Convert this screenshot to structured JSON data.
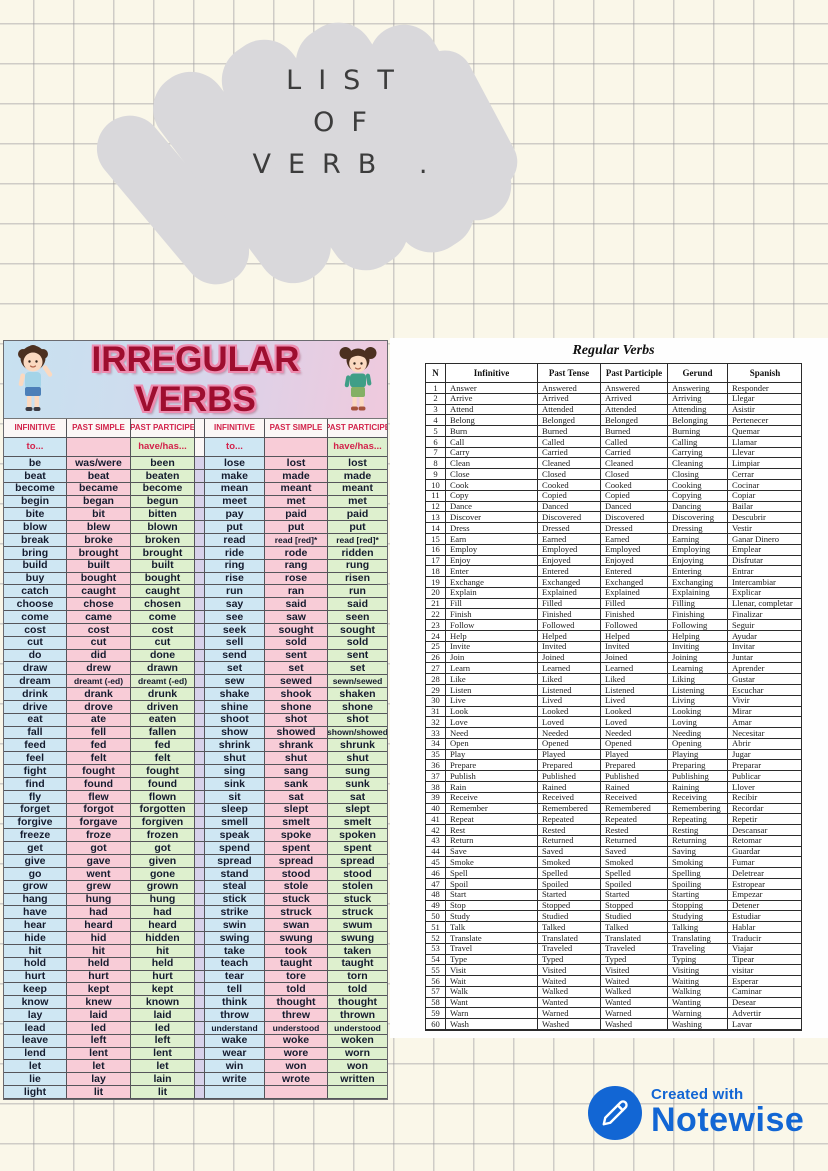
{
  "page_title": {
    "line1": "LIST",
    "line2": "OF",
    "line3": "VERB ."
  },
  "irregular": {
    "title": "IRREGULAR VERBS",
    "col_headers": [
      "INFINITIVE",
      "PAST SIMPLE",
      "PAST PARTICIPE",
      "INFINITIVE",
      "PAST SIMPLE",
      "PAST PARTICIPE"
    ],
    "sub_headers": [
      "to...",
      "",
      "have/has...",
      "to...",
      "",
      "have/has..."
    ],
    "colors": {
      "infinitive_bg": "#cfe7f3",
      "past_simple_bg": "#f8ccd7",
      "participle_bg": "#def0ce",
      "separator_bg": "#d7d2ea",
      "header_text": "#d2224a",
      "title_fill": "#9e0e2f",
      "title_outline": "#ee8cb0"
    },
    "left_rows": [
      [
        "be",
        "was/were",
        "been"
      ],
      [
        "beat",
        "beat",
        "beaten"
      ],
      [
        "become",
        "became",
        "become"
      ],
      [
        "begin",
        "began",
        "begun"
      ],
      [
        "bite",
        "bit",
        "bitten"
      ],
      [
        "blow",
        "blew",
        "blown"
      ],
      [
        "break",
        "broke",
        "broken"
      ],
      [
        "bring",
        "brought",
        "brought"
      ],
      [
        "build",
        "built",
        "built"
      ],
      [
        "buy",
        "bought",
        "bought"
      ],
      [
        "catch",
        "caught",
        "caught"
      ],
      [
        "choose",
        "chose",
        "chosen"
      ],
      [
        "come",
        "came",
        "come"
      ],
      [
        "cost",
        "cost",
        "cost"
      ],
      [
        "cut",
        "cut",
        "cut"
      ],
      [
        "do",
        "did",
        "done"
      ],
      [
        "draw",
        "drew",
        "drawn"
      ],
      [
        "dream",
        "dreamt (-ed)",
        "dreamt (-ed)"
      ],
      [
        "drink",
        "drank",
        "drunk"
      ],
      [
        "drive",
        "drove",
        "driven"
      ],
      [
        "eat",
        "ate",
        "eaten"
      ],
      [
        "fall",
        "fell",
        "fallen"
      ],
      [
        "feed",
        "fed",
        "fed"
      ],
      [
        "feel",
        "felt",
        "felt"
      ],
      [
        "fight",
        "fought",
        "fought"
      ],
      [
        "find",
        "found",
        "found"
      ],
      [
        "fly",
        "flew",
        "flown"
      ],
      [
        "forget",
        "forgot",
        "forgotten"
      ],
      [
        "forgive",
        "forgave",
        "forgiven"
      ],
      [
        "freeze",
        "froze",
        "frozen"
      ],
      [
        "get",
        "got",
        "got"
      ],
      [
        "give",
        "gave",
        "given"
      ],
      [
        "go",
        "went",
        "gone"
      ],
      [
        "grow",
        "grew",
        "grown"
      ],
      [
        "hang",
        "hung",
        "hung"
      ],
      [
        "have",
        "had",
        "had"
      ],
      [
        "hear",
        "heard",
        "heard"
      ],
      [
        "hide",
        "hid",
        "hidden"
      ],
      [
        "hit",
        "hit",
        "hit"
      ],
      [
        "hold",
        "held",
        "held"
      ],
      [
        "hurt",
        "hurt",
        "hurt"
      ],
      [
        "keep",
        "kept",
        "kept"
      ],
      [
        "know",
        "knew",
        "known"
      ],
      [
        "lay",
        "laid",
        "laid"
      ],
      [
        "lead",
        "led",
        "led"
      ],
      [
        "leave",
        "left",
        "left"
      ],
      [
        "lend",
        "lent",
        "lent"
      ],
      [
        "let",
        "let",
        "let"
      ],
      [
        "lie",
        "lay",
        "lain"
      ],
      [
        "light",
        "lit",
        "lit"
      ]
    ],
    "right_rows": [
      [
        "lose",
        "lost",
        "lost"
      ],
      [
        "make",
        "made",
        "made"
      ],
      [
        "mean",
        "meant",
        "meant"
      ],
      [
        "meet",
        "met",
        "met"
      ],
      [
        "pay",
        "paid",
        "paid"
      ],
      [
        "put",
        "put",
        "put"
      ],
      [
        "read",
        "read [red]*",
        "read [red]*"
      ],
      [
        "ride",
        "rode",
        "ridden"
      ],
      [
        "ring",
        "rang",
        "rung"
      ],
      [
        "rise",
        "rose",
        "risen"
      ],
      [
        "run",
        "ran",
        "run"
      ],
      [
        "say",
        "said",
        "said"
      ],
      [
        "see",
        "saw",
        "seen"
      ],
      [
        "seek",
        "sought",
        "sought"
      ],
      [
        "sell",
        "sold",
        "sold"
      ],
      [
        "send",
        "sent",
        "sent"
      ],
      [
        "set",
        "set",
        "set"
      ],
      [
        "sew",
        "sewed",
        "sewn/sewed"
      ],
      [
        "shake",
        "shook",
        "shaken"
      ],
      [
        "shine",
        "shone",
        "shone"
      ],
      [
        "shoot",
        "shot",
        "shot"
      ],
      [
        "show",
        "showed",
        "shown/showed"
      ],
      [
        "shrink",
        "shrank",
        "shrunk"
      ],
      [
        "shut",
        "shut",
        "shut"
      ],
      [
        "sing",
        "sang",
        "sung"
      ],
      [
        "sink",
        "sank",
        "sunk"
      ],
      [
        "sit",
        "sat",
        "sat"
      ],
      [
        "sleep",
        "slept",
        "slept"
      ],
      [
        "smell",
        "smelt",
        "smelt"
      ],
      [
        "speak",
        "spoke",
        "spoken"
      ],
      [
        "spend",
        "spent",
        "spent"
      ],
      [
        "spread",
        "spread",
        "spread"
      ],
      [
        "stand",
        "stood",
        "stood"
      ],
      [
        "steal",
        "stole",
        "stolen"
      ],
      [
        "stick",
        "stuck",
        "stuck"
      ],
      [
        "strike",
        "struck",
        "struck"
      ],
      [
        "swin",
        "swan",
        "swum"
      ],
      [
        "swing",
        "swung",
        "swung"
      ],
      [
        "take",
        "took",
        "taken"
      ],
      [
        "teach",
        "taught",
        "taught"
      ],
      [
        "tear",
        "tore",
        "torn"
      ],
      [
        "tell",
        "told",
        "told"
      ],
      [
        "think",
        "thought",
        "thought"
      ],
      [
        "throw",
        "threw",
        "thrown"
      ],
      [
        "understand",
        "understood",
        "understood"
      ],
      [
        "wake",
        "woke",
        "woken"
      ],
      [
        "wear",
        "wore",
        "worn"
      ],
      [
        "win",
        "won",
        "won"
      ],
      [
        "write",
        "wrote",
        "written"
      ],
      [
        "",
        "",
        ""
      ]
    ]
  },
  "regular": {
    "title": "Regular Verbs",
    "headers": [
      "N",
      "Infinitive",
      "Past Tense",
      "Past Participle",
      "Gerund",
      "Spanish"
    ],
    "rows": [
      [
        "1",
        "Answer",
        "Answered",
        "Answered",
        "Answering",
        "Responder"
      ],
      [
        "2",
        "Arrive",
        "Arrived",
        "Arrived",
        "Arriving",
        "Llegar"
      ],
      [
        "3",
        "Attend",
        "Attended",
        "Attended",
        "Attending",
        "Asistir"
      ],
      [
        "4",
        "Belong",
        "Belonged",
        "Belonged",
        "Belonging",
        "Pertenecer"
      ],
      [
        "5",
        "Burn",
        "Burned",
        "Burned",
        "Burning",
        "Quemar"
      ],
      [
        "6",
        "Call",
        "Called",
        "Called",
        "Calling",
        "Llamar"
      ],
      [
        "7",
        "Carry",
        "Carried",
        "Carried",
        "Carrying",
        "Llevar"
      ],
      [
        "8",
        "Clean",
        "Cleaned",
        "Cleaned",
        "Cleaning",
        "Limpiar"
      ],
      [
        "9",
        "Close",
        "Closed",
        "Closed",
        "Closing",
        "Cerrar"
      ],
      [
        "10",
        "Cook",
        "Cooked",
        "Cooked",
        "Cooking",
        "Cocinar"
      ],
      [
        "11",
        "Copy",
        "Copied",
        "Copied",
        "Copying",
        "Copiar"
      ],
      [
        "12",
        "Dance",
        "Danced",
        "Danced",
        "Dancing",
        "Bailar"
      ],
      [
        "13",
        "Discover",
        "Discovered",
        "Discovered",
        "Discovering",
        "Descubrir"
      ],
      [
        "14",
        "Dress",
        "Dressed",
        "Dressed",
        "Dressing",
        "Vestir"
      ],
      [
        "15",
        "Earn",
        "Earned",
        "Earned",
        "Earning",
        "Ganar Dinero"
      ],
      [
        "16",
        "Employ",
        "Employed",
        "Employed",
        "Employing",
        "Emplear"
      ],
      [
        "17",
        "Enjoy",
        "Enjoyed",
        "Enjoyed",
        "Enjoying",
        "Disfrutar"
      ],
      [
        "18",
        "Enter",
        "Entered",
        "Entered",
        "Entering",
        "Entrar"
      ],
      [
        "19",
        "Exchange",
        "Exchanged",
        "Exchanged",
        "Exchanging",
        "Intercambiar"
      ],
      [
        "20",
        "Explain",
        "Explained",
        "Explained",
        "Explaining",
        "Explicar"
      ],
      [
        "21",
        "Fill",
        "Filled",
        "Filled",
        "Filling",
        "Llenar, completar"
      ],
      [
        "22",
        "Finish",
        "Finished",
        "Finished",
        "Finishing",
        "Finalizar"
      ],
      [
        "23",
        "Follow",
        "Followed",
        "Followed",
        "Following",
        "Seguir"
      ],
      [
        "24",
        "Help",
        "Helped",
        "Helped",
        "Helping",
        "Ayudar"
      ],
      [
        "25",
        "Invite",
        "Invited",
        "Invited",
        "Inviting",
        "Invitar"
      ],
      [
        "26",
        "Join",
        "Joined",
        "Joined",
        "Joining",
        "Juntar"
      ],
      [
        "27",
        "Learn",
        "Learned",
        "Learned",
        "Learning",
        "Aprender"
      ],
      [
        "28",
        "Like",
        "Liked",
        "Liked",
        "Liking",
        "Gustar"
      ],
      [
        "29",
        "Listen",
        "Listened",
        "Listened",
        "Listening",
        "Escuchar"
      ],
      [
        "30",
        "Live",
        "Lived",
        "Lived",
        "Living",
        "Vivir"
      ],
      [
        "31",
        "Look",
        "Looked",
        "Looked",
        "Looking",
        "Mirar"
      ],
      [
        "32",
        "Love",
        "Loved",
        "Loved",
        "Loving",
        "Amar"
      ],
      [
        "33",
        "Need",
        "Needed",
        "Needed",
        "Needing",
        "Necesitar"
      ],
      [
        "34",
        "Open",
        "Opened",
        "Opened",
        "Opening",
        "Abrir"
      ],
      [
        "35",
        "Play",
        "Played",
        "Played",
        "Playing",
        "Jugar"
      ],
      [
        "36",
        "Prepare",
        "Prepared",
        "Prepared",
        "Preparing",
        "Preparar"
      ],
      [
        "37",
        "Publish",
        "Published",
        "Published",
        "Publishing",
        "Publicar"
      ],
      [
        "38",
        "Rain",
        "Rained",
        "Rained",
        "Raining",
        "Llover"
      ],
      [
        "39",
        "Receive",
        "Received",
        "Received",
        "Receiving",
        "Recibir"
      ],
      [
        "40",
        "Remember",
        "Remembered",
        "Remembered",
        "Remembering",
        "Recordar"
      ],
      [
        "41",
        "Repeat",
        "Repeated",
        "Repeated",
        "Repeating",
        "Repetir"
      ],
      [
        "42",
        "Rest",
        "Rested",
        "Rested",
        "Resting",
        "Descansar"
      ],
      [
        "43",
        "Return",
        "Returned",
        "Returned",
        "Returning",
        "Retomar"
      ],
      [
        "44",
        "Save",
        "Saved",
        "Saved",
        "Saving",
        "Guardar"
      ],
      [
        "45",
        "Smoke",
        "Smoked",
        "Smoked",
        "Smoking",
        "Fumar"
      ],
      [
        "46",
        "Spell",
        "Spelled",
        "Spelled",
        "Spelling",
        "Deletrear"
      ],
      [
        "47",
        "Spoil",
        "Spoiled",
        "Spoiled",
        "Spoiling",
        "Estropear"
      ],
      [
        "48",
        "Start",
        "Started",
        "Started",
        "Starting",
        "Empezar"
      ],
      [
        "49",
        "Stop",
        "Stopped",
        "Stopped",
        "Stopping",
        "Detener"
      ],
      [
        "50",
        "Study",
        "Studied",
        "Studied",
        "Studying",
        "Estudiar"
      ],
      [
        "51",
        "Talk",
        "Talked",
        "Talked",
        "Talking",
        "Hablar"
      ],
      [
        "52",
        "Translate",
        "Translated",
        "Translated",
        "Translating",
        "Traducir"
      ],
      [
        "53",
        "Travel",
        "Traveled",
        "Traveled",
        "Traveling",
        "Viajar"
      ],
      [
        "54",
        "Type",
        "Typed",
        "Typed",
        "Typing",
        "Tipear"
      ],
      [
        "55",
        "Visit",
        "Visited",
        "Visited",
        "Visiting",
        "visitar"
      ],
      [
        "56",
        "Wait",
        "Waited",
        "Waited",
        "Waiting",
        "Esperar"
      ],
      [
        "57",
        "Walk",
        "Walked",
        "Walked",
        "Walking",
        "Caminar"
      ],
      [
        "58",
        "Want",
        "Wanted",
        "Wanted",
        "Wanting",
        "Desear"
      ],
      [
        "59",
        "Warn",
        "Warned",
        "Warned",
        "Warning",
        "Advertir"
      ],
      [
        "60",
        "Wash",
        "Washed",
        "Washed",
        "Washing",
        "Lavar"
      ]
    ]
  },
  "footer": {
    "created_with": "Created with",
    "brand": "Notewise",
    "brand_color": "#1266d4"
  }
}
